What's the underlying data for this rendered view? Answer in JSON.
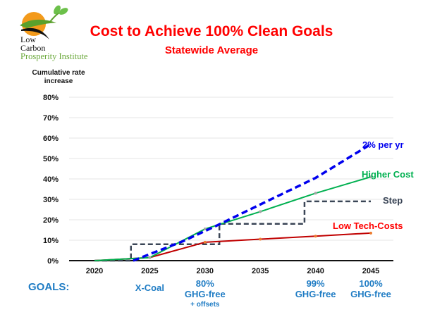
{
  "logo": {
    "line1": "Low",
    "line2": "Carbon",
    "line3": "Prosperity Institute"
  },
  "header": {
    "title": "Cost to Achieve 100% Clean Goals",
    "subtitle": "Statewide Average"
  },
  "goals": {
    "label": "GOALS:",
    "items": [
      {
        "year": 2025,
        "line1": "X-Coal",
        "line2": "",
        "line3": ""
      },
      {
        "year": 2030,
        "line1": "80%",
        "line2": "GHG-free",
        "line3": "+ offsets"
      },
      {
        "year": 2040,
        "line1": "99%",
        "line2": "GHG-free",
        "line3": ""
      },
      {
        "year": 2045,
        "line1": "100%",
        "line2": "GHG-free",
        "line3": ""
      }
    ]
  },
  "colors": {
    "title": "#ff0000",
    "goals": "#1f7cc4",
    "blue_series": "#0000ee",
    "green_series": "#00b050",
    "step_series": "#3a4556",
    "red_series": "#c00000",
    "marker_orange": "#ed7d31",
    "marker_gray": "#a5a5a5",
    "gridline": "#e4e4e4"
  },
  "chart_data": {
    "type": "line",
    "title": "Cost to Achieve 100% Clean Goals",
    "subtitle": "Statewide Average",
    "xlabel": "",
    "ylabel": "Cumulative rate increase",
    "xlim": [
      2017.7,
      2047
    ],
    "ylim": [
      0,
      80
    ],
    "x_ticks": [
      2020,
      2025,
      2030,
      2035,
      2040,
      2045
    ],
    "x_tick_labels": [
      "2020",
      "2025",
      "2030",
      "2035",
      "2040",
      "2045"
    ],
    "y_ticks": [
      0,
      10,
      20,
      30,
      40,
      50,
      60,
      70,
      80
    ],
    "y_tick_labels": [
      "0%",
      "10%",
      "20%",
      "30%",
      "40%",
      "50%",
      "60%",
      "70%",
      "80%"
    ],
    "grid": true,
    "legend": "inline labels at right end of each series",
    "series": [
      {
        "name": "2% per yr",
        "style": "dashed",
        "color": "#0000ee",
        "x": [
          2023.5,
          2028,
          2031,
          2035,
          2040,
          2045
        ],
        "y": [
          0,
          9.5,
          17,
          27.5,
          40.5,
          57
        ]
      },
      {
        "name": "Higher Cost",
        "style": "solid",
        "color": "#00b050",
        "x": [
          2020,
          2025,
          2030,
          2035,
          2040,
          2045
        ],
        "y": [
          0,
          1.5,
          15.5,
          24,
          33,
          41
        ]
      },
      {
        "name": "Step",
        "style": "dashed-step",
        "color": "#3a4556",
        "x": [
          2020,
          2023.3,
          2023.3,
          2031.3,
          2031.3,
          2039,
          2039,
          2045
        ],
        "y": [
          0,
          0,
          8,
          8,
          18,
          18,
          29,
          29
        ]
      },
      {
        "name": "Low Tech-Costs",
        "style": "solid",
        "color": "#c00000",
        "x": [
          2020,
          2025,
          2030,
          2035,
          2040,
          2045
        ],
        "y": [
          0,
          1.5,
          9,
          10.5,
          12,
          13.5
        ]
      }
    ]
  }
}
